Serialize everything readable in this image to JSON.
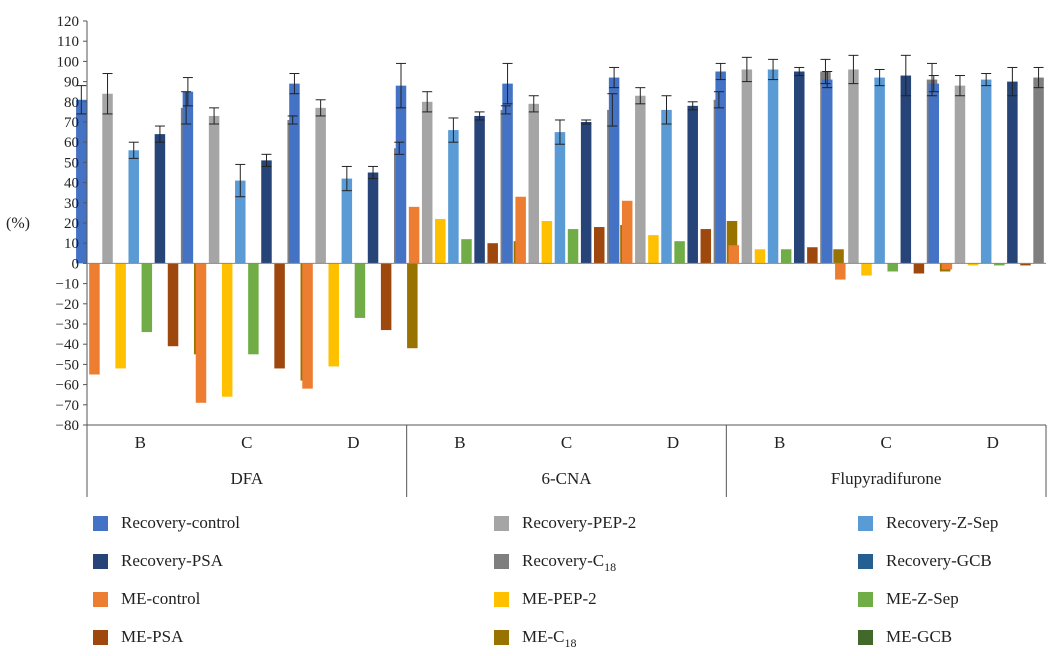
{
  "chart_data": {
    "type": "bar",
    "ylabel": "(%)",
    "ylim": [
      -80,
      120
    ],
    "yticks": [
      -80,
      -70,
      -60,
      -50,
      -40,
      -30,
      -20,
      -10,
      0,
      10,
      20,
      30,
      40,
      50,
      60,
      70,
      80,
      90,
      100,
      110,
      120
    ],
    "ytick_labels": [
      "−80",
      "−70",
      "−60",
      "−50",
      "−40",
      "−30",
      "−20",
      "−10",
      "0",
      "10",
      "20",
      "30",
      "40",
      "50",
      "60",
      "70",
      "80",
      "90",
      "100",
      "110",
      "120"
    ],
    "groups": [
      {
        "name": "DFA",
        "categories": [
          "B",
          "C",
          "D"
        ]
      },
      {
        "name": "6-CNA",
        "categories": [
          "B",
          "C",
          "D"
        ]
      },
      {
        "name": "Flupyradifurone",
        "categories": [
          "B",
          "C",
          "D"
        ]
      }
    ],
    "series": [
      {
        "name": "Recovery-control",
        "color": "#4472C4",
        "values": [
          81,
          85,
          89,
          88,
          89,
          92,
          95,
          91,
          89
        ],
        "errors": [
          7,
          7,
          5,
          11,
          10,
          5,
          4,
          4,
          4
        ]
      },
      {
        "name": "Recovery-PEP-2",
        "color": "#A5A5A5",
        "values": [
          84,
          73,
          77,
          80,
          79,
          83,
          96,
          96,
          88
        ],
        "errors": [
          10,
          4,
          4,
          5,
          4,
          4,
          6,
          7,
          5
        ]
      },
      {
        "name": "Recovery-Z-Sep",
        "color": "#5B9BD5",
        "values": [
          56,
          41,
          42,
          66,
          65,
          76,
          96,
          92,
          91
        ],
        "errors": [
          4,
          8,
          6,
          6,
          6,
          7,
          5,
          4,
          3
        ]
      },
      {
        "name": "Recovery-PSA",
        "color": "#264478",
        "values": [
          64,
          51,
          45,
          73,
          70,
          78,
          95,
          93,
          90
        ],
        "errors": [
          4,
          3,
          3,
          2,
          1,
          2,
          2,
          10,
          7
        ]
      },
      {
        "name": "Recovery-C18",
        "color": "#7F7F7F",
        "values": [
          77,
          71,
          57,
          76,
          76,
          81,
          95,
          91,
          92
        ],
        "errors": [
          8,
          2,
          3,
          2,
          8,
          4,
          6,
          8,
          5
        ]
      },
      {
        "name": "Recovery-GCB",
        "color": "#255E91",
        "values": [
          null,
          null,
          null,
          null,
          null,
          null,
          null,
          null,
          null
        ],
        "errors": [
          null,
          null,
          null,
          null,
          null,
          null,
          null,
          null,
          null
        ]
      },
      {
        "name": "ME-control",
        "color": "#ED7D31",
        "values": [
          -55,
          -69,
          -62,
          28,
          33,
          31,
          9,
          -8,
          -3
        ],
        "errors": [
          null,
          null,
          null,
          null,
          null,
          null,
          null,
          null,
          null
        ]
      },
      {
        "name": "ME-PEP-2",
        "color": "#FFC000",
        "values": [
          -52,
          -66,
          -51,
          22,
          21,
          14,
          7,
          -6,
          -1
        ],
        "errors": [
          null,
          null,
          null,
          null,
          null,
          null,
          null,
          null,
          null
        ]
      },
      {
        "name": "ME-Z-Sep",
        "color": "#70AD47",
        "values": [
          -34,
          -45,
          -27,
          12,
          17,
          11,
          7,
          -4,
          -1
        ],
        "errors": [
          null,
          null,
          null,
          null,
          null,
          null,
          null,
          null,
          null
        ]
      },
      {
        "name": "ME-PSA",
        "color": "#9E480E",
        "values": [
          -41,
          -52,
          -33,
          10,
          18,
          17,
          8,
          -5,
          -1
        ],
        "errors": [
          null,
          null,
          null,
          null,
          null,
          null,
          null,
          null,
          null
        ]
      },
      {
        "name": "ME-C18",
        "color": "#997300",
        "values": [
          -45,
          -58,
          -42,
          11,
          19,
          21,
          7,
          -4,
          null
        ],
        "errors": [
          null,
          null,
          null,
          null,
          null,
          null,
          null,
          null,
          null
        ]
      },
      {
        "name": "ME-GCB",
        "color": "#43682B",
        "values": [
          null,
          null,
          null,
          null,
          null,
          null,
          null,
          null,
          null
        ],
        "errors": [
          null,
          null,
          null,
          null,
          null,
          null,
          null,
          null,
          null
        ]
      }
    ],
    "bar_order": [
      "Recovery-control",
      "ME-control",
      "Recovery-PEP-2",
      "ME-PEP-2",
      "Recovery-Z-Sep",
      "ME-Z-Sep",
      "Recovery-PSA",
      "ME-PSA",
      "Recovery-C18",
      "ME-C18"
    ],
    "legend": {
      "placement": "bottom",
      "columns": 3,
      "entries": [
        {
          "label": "Recovery-control",
          "color": "#4472C4"
        },
        {
          "label": "Recovery-PEP-2",
          "color": "#A5A5A5"
        },
        {
          "label": "Recovery-Z-Sep",
          "color": "#5B9BD5"
        },
        {
          "label": "Recovery-PSA",
          "color": "#264478"
        },
        {
          "label": "Recovery-C",
          "sub": "18",
          "color": "#7F7F7F"
        },
        {
          "label": "Recovery-GCB",
          "color": "#255E91"
        },
        {
          "label": "ME-control",
          "color": "#ED7D31"
        },
        {
          "label": "ME-PEP-2",
          "color": "#FFC000"
        },
        {
          "label": "ME-Z-Sep",
          "color": "#70AD47"
        },
        {
          "label": "ME-PSA",
          "color": "#9E480E"
        },
        {
          "label": "ME-C",
          "sub": "18",
          "color": "#997300"
        },
        {
          "label": "ME-GCB",
          "color": "#43682B"
        }
      ]
    }
  }
}
